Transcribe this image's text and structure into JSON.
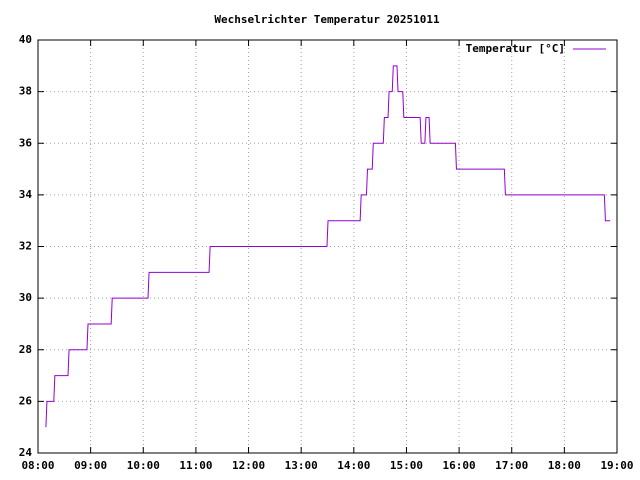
{
  "chart_data": {
    "type": "line",
    "title": "Wechselrichter Temperatur 20251011",
    "xlim": [
      8,
      19
    ],
    "xticks": [
      {
        "value": 8,
        "label": "08:00"
      },
      {
        "value": 9,
        "label": "09:00"
      },
      {
        "value": 10,
        "label": "10:00"
      },
      {
        "value": 11,
        "label": "11:00"
      },
      {
        "value": 12,
        "label": "12:00"
      },
      {
        "value": 13,
        "label": "13:00"
      },
      {
        "value": 14,
        "label": "14:00"
      },
      {
        "value": 15,
        "label": "15:00"
      },
      {
        "value": 16,
        "label": "16:00"
      },
      {
        "value": 17,
        "label": "17:00"
      },
      {
        "value": 18,
        "label": "18:00"
      },
      {
        "value": 19,
        "label": "19:00"
      }
    ],
    "ylim": [
      24,
      40
    ],
    "yticks": [
      24,
      26,
      28,
      30,
      32,
      34,
      36,
      38,
      40
    ],
    "grid": true,
    "legend": "top-right",
    "series": [
      {
        "name": "Temperatur [°C]",
        "color": "#9400d3",
        "x": [
          8.15,
          8.17,
          8.3,
          8.32,
          8.57,
          8.59,
          8.93,
          8.95,
          9.39,
          9.41,
          10.09,
          10.11,
          11.25,
          11.27,
          13.49,
          13.51,
          14.12,
          14.14,
          14.24,
          14.26,
          14.35,
          14.37,
          14.56,
          14.58,
          14.65,
          14.67,
          14.73,
          14.75,
          14.82,
          14.84,
          14.93,
          14.95,
          15.26,
          15.28,
          15.35,
          15.37,
          15.43,
          15.45,
          15.93,
          15.95,
          16.86,
          16.88,
          18.76,
          18.78,
          18.87
        ],
        "values": [
          25,
          26,
          26,
          27,
          27,
          28,
          28,
          29,
          29,
          30,
          30,
          31,
          31,
          32,
          32,
          33,
          33,
          34,
          34,
          35,
          35,
          36,
          36,
          37,
          37,
          38,
          38,
          39,
          39,
          38,
          38,
          37,
          37,
          36,
          36,
          37,
          37,
          36,
          36,
          35,
          35,
          34,
          34,
          33,
          33
        ]
      }
    ]
  }
}
